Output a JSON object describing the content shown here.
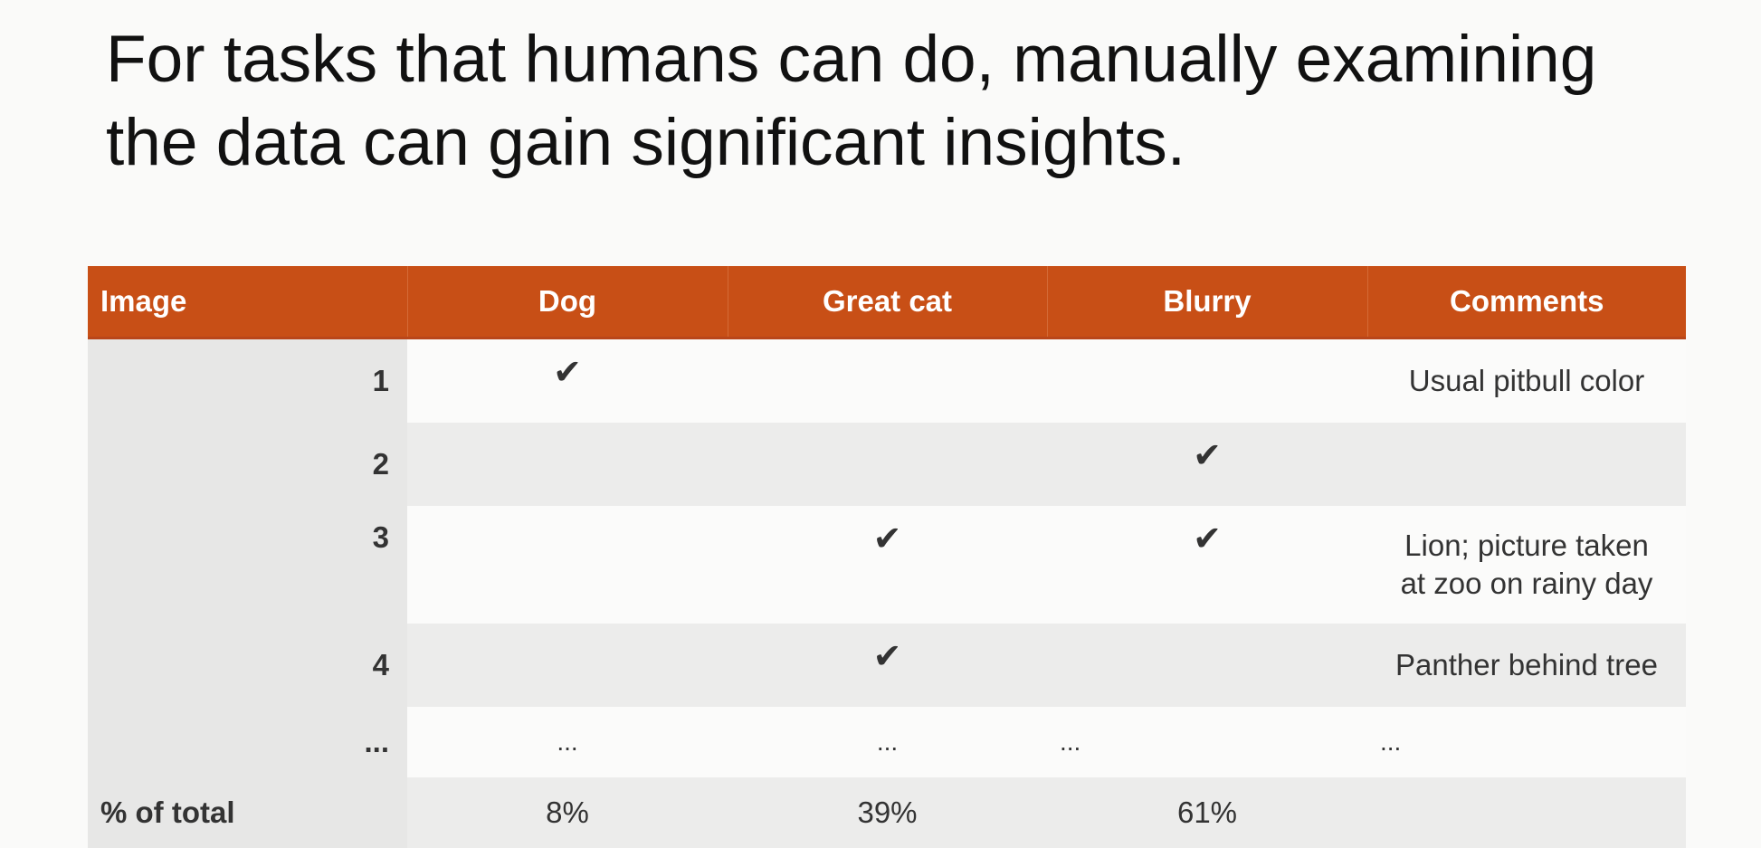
{
  "slide": {
    "title_lines": [
      "For tasks that humans can do, manually examining",
      "the data can gain significant insights."
    ]
  },
  "table": {
    "headers": [
      "Image",
      "Dog",
      "Great cat",
      "Blurry",
      "Comments"
    ],
    "rows": [
      {
        "image": "1",
        "dog": "✔",
        "great_cat": "",
        "blurry": "",
        "comments": [
          "Usual pitbull color"
        ]
      },
      {
        "image": "2",
        "dog": "",
        "great_cat": "",
        "blurry": "✔",
        "comments": []
      },
      {
        "image": "3",
        "dog": "",
        "great_cat": "✔",
        "blurry": "✔",
        "comments": [
          "Lion; picture taken",
          "at zoo on rainy day"
        ]
      },
      {
        "image": "4",
        "dog": "",
        "great_cat": "✔",
        "blurry": "",
        "comments": [
          "Panther behind tree"
        ]
      },
      {
        "image": "...",
        "dog": "...",
        "great_cat": "...",
        "blurry": "...",
        "comments": [
          "..."
        ]
      }
    ],
    "summary": {
      "label": "% of total",
      "dog": "8%",
      "great_cat": "39%",
      "blurry": "61%",
      "comments": ""
    },
    "colors": {
      "header_bg": "#c84f16",
      "header_text": "#ffffff",
      "row_alt_bg": "#ececeb",
      "label_col_bg": "#e7e7e6"
    }
  }
}
